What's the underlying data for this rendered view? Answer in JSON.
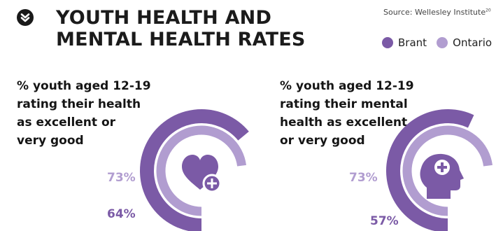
{
  "header": {
    "title_line1": "YOUTH HEALTH AND",
    "title_line2": "MENTAL HEALTH RATES",
    "source": "Source: Wellesley Institute",
    "source_sup": "20"
  },
  "legend": [
    {
      "name": "Brant",
      "color": "#7b5aa6"
    },
    {
      "name": "Ontario",
      "color": "#b19dd0"
    }
  ],
  "chart_data": [
    {
      "type": "pie",
      "title": "% youth aged 12-19 rating their health as excellent or very good",
      "title_lines": [
        "% youth aged 12-19",
        "rating their health",
        "as excellent or",
        "very good"
      ],
      "series": [
        {
          "name": "Brant",
          "value": 64,
          "label": "64%"
        },
        {
          "name": "Ontario",
          "value": 73,
          "label": "73%"
        }
      ],
      "icon": "heart-plus-icon"
    },
    {
      "type": "pie",
      "title": "% youth aged 12-19 rating their mental health as excellent or very good",
      "title_lines": [
        "% youth aged 12-19",
        "rating their mental",
        "health as excellent",
        "or very good"
      ],
      "series": [
        {
          "name": "Brant",
          "value": 57,
          "label": "57%"
        },
        {
          "name": "Ontario",
          "value": 73,
          "label": "73%"
        }
      ],
      "icon": "head-plus-icon"
    }
  ]
}
